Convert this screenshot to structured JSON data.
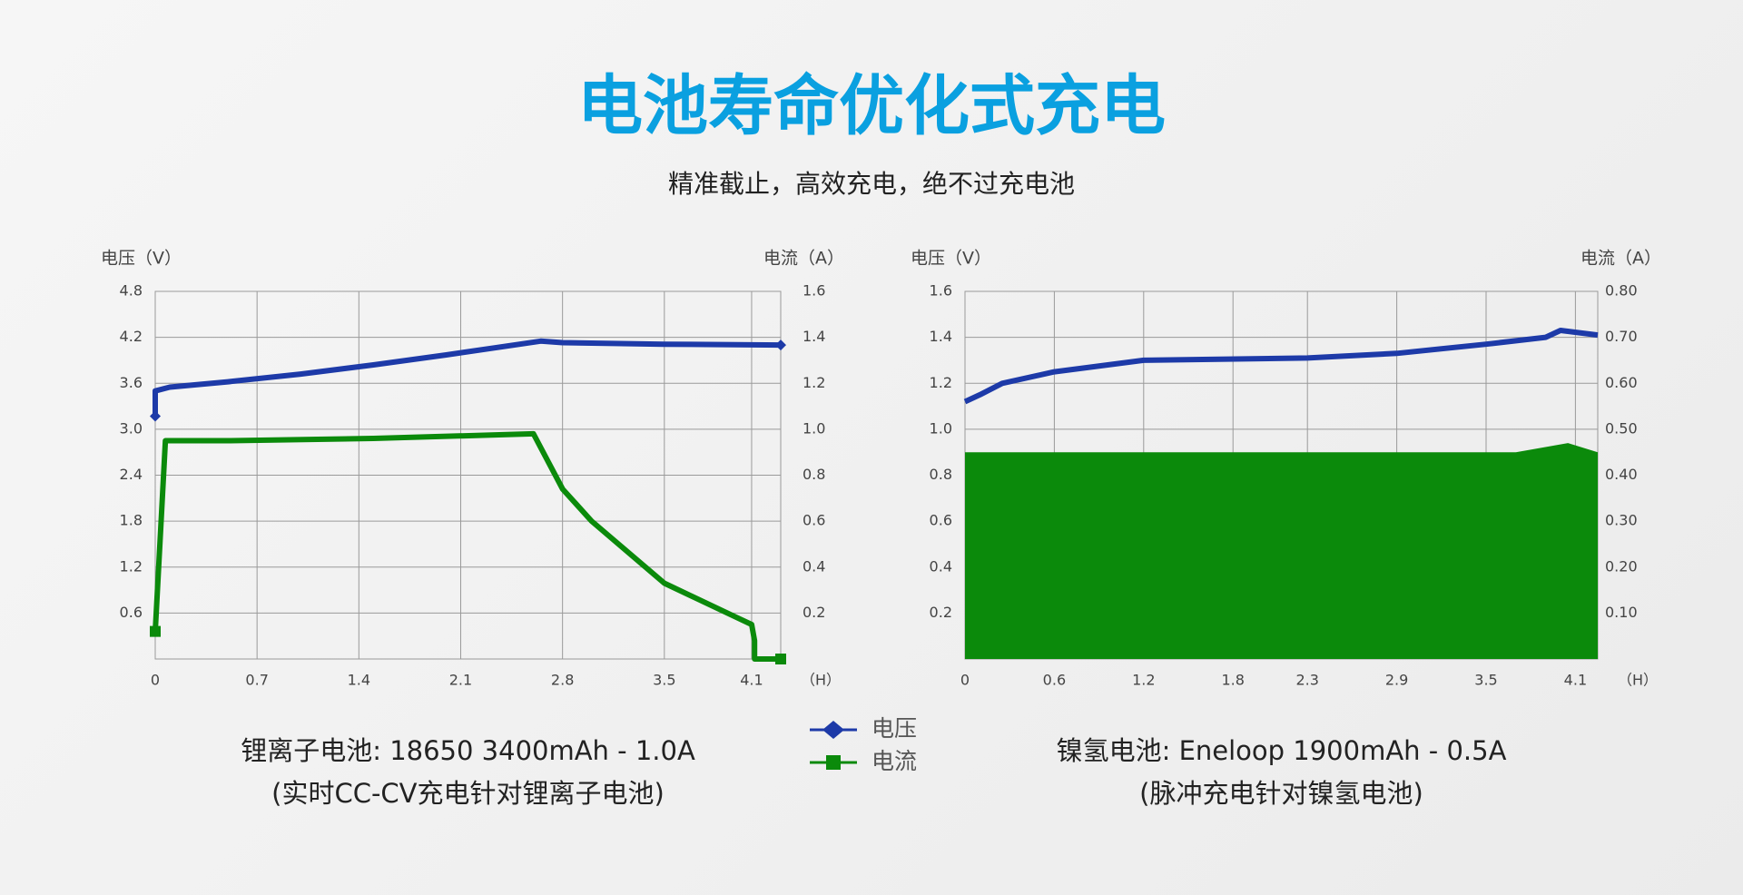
{
  "header": {
    "title": "电池寿命优化式充电",
    "subtitle": "精准截止，高效充电，绝不过充电池"
  },
  "legend": [
    {
      "name": "电压",
      "color": "#1d3aa8",
      "marker": "diamond"
    },
    {
      "name": "电流",
      "color": "#0b8a0b",
      "marker": "square"
    }
  ],
  "chart_data": [
    {
      "type": "line",
      "y_label": "电压（V）",
      "y2_label": "电流（A）",
      "x_unit": "（H）",
      "caption": "锂离子电池: 18650 3400mAh - 1.0A",
      "subcaption": "(实时CC-CV充电针对锂离子电池)",
      "xlim": [
        0,
        4.3
      ],
      "xticks": [
        0,
        0.7,
        1.4,
        2.1,
        2.8,
        3.5,
        4.1
      ],
      "ylim": [
        0,
        4.8
      ],
      "yticks": [
        0.6,
        1.2,
        1.8,
        2.4,
        {
          "value": 3,
          "label": "3.0"
        },
        3.6,
        4.2,
        4.8
      ],
      "y2lim": [
        0,
        1.6
      ],
      "y2ticks": [
        0.2,
        0.4,
        0.6,
        0.8,
        {
          "value": 1,
          "label": "1.0"
        },
        1.2,
        1.4,
        1.6
      ],
      "grid": true,
      "series": [
        {
          "color": "#1d3aa8",
          "marker": "diamond",
          "x": [
            0,
            0,
            0.1,
            0.5,
            1.0,
            1.5,
            2.0,
            2.65,
            2.8,
            3.5,
            4.3
          ],
          "values": [
            3.17,
            3.5,
            3.55,
            3.62,
            3.72,
            3.84,
            3.97,
            4.15,
            4.13,
            4.11,
            4.1
          ]
        },
        {
          "color": "#0b8a0b",
          "marker": "square",
          "axis": "y2",
          "x": [
            0,
            0.07,
            0.5,
            1.5,
            2.6,
            2.8,
            3.0,
            3.5,
            4.0,
            4.1,
            4.12,
            4.12,
            4.3
          ],
          "values": [
            0.12,
            0.95,
            0.95,
            0.96,
            0.98,
            0.74,
            0.6,
            0.33,
            0.18,
            0.15,
            0.08,
            0,
            0
          ]
        }
      ]
    },
    {
      "type": "line",
      "y_label": "电压（V）",
      "y2_label": "电流（A）",
      "x_unit": "（H）",
      "caption": "镍氢电池: Eneloop 1900mAh - 0.5A",
      "subcaption": "(脉冲充电针对镍氢电池)",
      "xlim": [
        0,
        4.25
      ],
      "xticks": [
        0,
        0.6,
        1.2,
        1.8,
        2.3,
        2.9,
        3.5,
        4.1
      ],
      "ylim": [
        0,
        1.6
      ],
      "yticks": [
        0.2,
        0.4,
        0.6,
        0.8,
        {
          "value": 1,
          "label": "1.0"
        },
        1.2,
        1.4,
        1.6
      ],
      "y2lim": [
        0,
        0.8
      ],
      "y2ticks": [
        {
          "value": 0.1,
          "label": "0.10"
        },
        {
          "value": 0.2,
          "label": "0.20"
        },
        {
          "value": 0.3,
          "label": "0.30"
        },
        {
          "value": 0.4,
          "label": "0.40"
        },
        {
          "value": 0.5,
          "label": "0.50"
        },
        {
          "value": 0.6,
          "label": "0.60"
        },
        {
          "value": 0.7,
          "label": "0.70"
        },
        {
          "value": 0.8,
          "label": "0.80"
        }
      ],
      "grid": true,
      "series": [
        {
          "color": "#1d3aa8",
          "x": [
            0,
            0.1,
            0.25,
            0.6,
            1.2,
            2.3,
            2.9,
            3.5,
            3.9,
            4.0,
            4.25
          ],
          "values": [
            1.12,
            1.15,
            1.2,
            1.25,
            1.3,
            1.31,
            1.33,
            1.37,
            1.4,
            1.43,
            1.41
          ]
        },
        {
          "color": "#0b8a0b",
          "fill": true,
          "axis": "y2",
          "x": [
            0,
            1.0,
            2.0,
            3.0,
            3.7,
            4.05,
            4.25
          ],
          "values": [
            0.45,
            0.45,
            0.45,
            0.45,
            0.45,
            0.47,
            0.45
          ]
        }
      ]
    }
  ]
}
